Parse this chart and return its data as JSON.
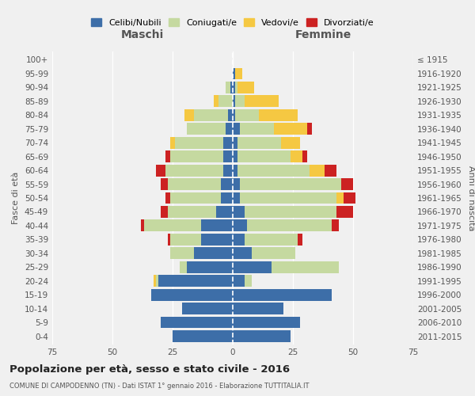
{
  "age_groups": [
    "0-4",
    "5-9",
    "10-14",
    "15-19",
    "20-24",
    "25-29",
    "30-34",
    "35-39",
    "40-44",
    "45-49",
    "50-54",
    "55-59",
    "60-64",
    "65-69",
    "70-74",
    "75-79",
    "80-84",
    "85-89",
    "90-94",
    "95-99",
    "100+"
  ],
  "birth_years": [
    "2011-2015",
    "2006-2010",
    "2001-2005",
    "1996-2000",
    "1991-1995",
    "1986-1990",
    "1981-1985",
    "1976-1980",
    "1971-1975",
    "1966-1970",
    "1961-1965",
    "1956-1960",
    "1951-1955",
    "1946-1950",
    "1941-1945",
    "1936-1940",
    "1931-1935",
    "1926-1930",
    "1921-1925",
    "1916-1920",
    "≤ 1915"
  ],
  "male": {
    "celibe": [
      25,
      30,
      21,
      34,
      31,
      19,
      16,
      13,
      13,
      7,
      5,
      5,
      4,
      4,
      4,
      3,
      2,
      0,
      1,
      0,
      0
    ],
    "coniugato": [
      0,
      0,
      0,
      0,
      1,
      3,
      10,
      13,
      24,
      20,
      21,
      22,
      24,
      22,
      20,
      16,
      14,
      6,
      2,
      0,
      0
    ],
    "vedovo": [
      0,
      0,
      0,
      0,
      1,
      0,
      0,
      0,
      0,
      0,
      0,
      0,
      0,
      0,
      2,
      0,
      4,
      2,
      0,
      0,
      0
    ],
    "divorziato": [
      0,
      0,
      0,
      0,
      0,
      0,
      0,
      1,
      1,
      3,
      2,
      3,
      4,
      2,
      0,
      0,
      0,
      0,
      0,
      0,
      0
    ]
  },
  "female": {
    "nubile": [
      24,
      28,
      21,
      41,
      5,
      16,
      8,
      5,
      6,
      5,
      3,
      3,
      2,
      2,
      2,
      3,
      1,
      1,
      1,
      1,
      0
    ],
    "coniugata": [
      0,
      0,
      0,
      0,
      3,
      28,
      18,
      22,
      35,
      38,
      40,
      42,
      30,
      22,
      18,
      14,
      10,
      4,
      1,
      0,
      0
    ],
    "vedova": [
      0,
      0,
      0,
      0,
      0,
      0,
      0,
      0,
      0,
      0,
      3,
      0,
      6,
      5,
      8,
      14,
      16,
      14,
      7,
      3,
      0
    ],
    "divorziata": [
      0,
      0,
      0,
      0,
      0,
      0,
      0,
      2,
      3,
      7,
      5,
      5,
      5,
      2,
      0,
      2,
      0,
      0,
      0,
      0,
      0
    ]
  },
  "colors": {
    "celibe": "#3d6ea8",
    "coniugato": "#c5d9a0",
    "vedovo": "#f5c842",
    "divorziato": "#cc2222"
  },
  "xlim": 75,
  "title": "Popolazione per età, sesso e stato civile - 2016",
  "subtitle": "COMUNE DI CAMPODENNO (TN) - Dati ISTAT 1° gennaio 2016 - Elaborazione TUTTITALIA.IT",
  "ylabel_left": "Fasce di età",
  "ylabel_right": "Anni di nascita",
  "xlabel_maschi": "Maschi",
  "xlabel_femmine": "Femmine",
  "legend_labels": [
    "Celibi/Nubili",
    "Coniugati/e",
    "Vedovi/e",
    "Divorziati/e"
  ],
  "bg_color": "#f0f0f0",
  "grid_color": "#ffffff",
  "text_color": "#555555",
  "title_color": "#222222"
}
